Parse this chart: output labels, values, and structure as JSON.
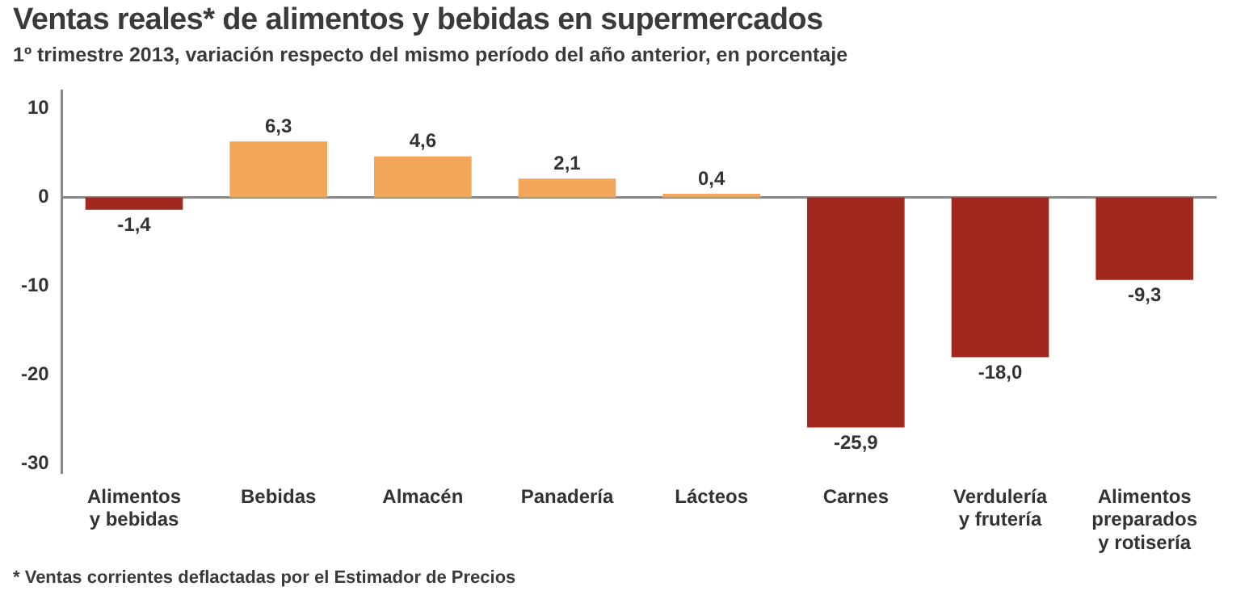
{
  "chart_data": {
    "type": "bar",
    "title": "Ventas reales* de alimentos y bebidas en supermercados",
    "subtitle": "1º trimestre 2013, variación respecto del mismo período del año anterior, en porcentaje",
    "categories": [
      "Alimentos\ny bebidas",
      "Bebidas",
      "Almacén",
      "Panadería",
      "Lácteos",
      "Carnes",
      "Verdulería\ny frutería",
      "Alimentos\npreparados\ny rotisería"
    ],
    "values": [
      -1.4,
      6.3,
      4.6,
      2.1,
      0.4,
      -25.9,
      -18.0,
      -9.3
    ],
    "value_labels": [
      "-1,4",
      "6,3",
      "4,6",
      "2,1",
      "0,4",
      "-25,9",
      "-18,0",
      "-9,3"
    ],
    "colors": [
      "#a0281c",
      "#f2a65a",
      "#f2a65a",
      "#f2a65a",
      "#f2a65a",
      "#a0281c",
      "#a0281c",
      "#a0281c"
    ],
    "ylim": [
      -31,
      12
    ],
    "yticks": [
      10,
      0,
      -10,
      -20,
      -30
    ],
    "grid": false,
    "ref_lines": [
      {
        "axis": "y",
        "value": 0,
        "color": "#888888"
      }
    ],
    "annotations": [
      "* Ventas corrientes deflactadas por el Estimador de Precios"
    ]
  }
}
